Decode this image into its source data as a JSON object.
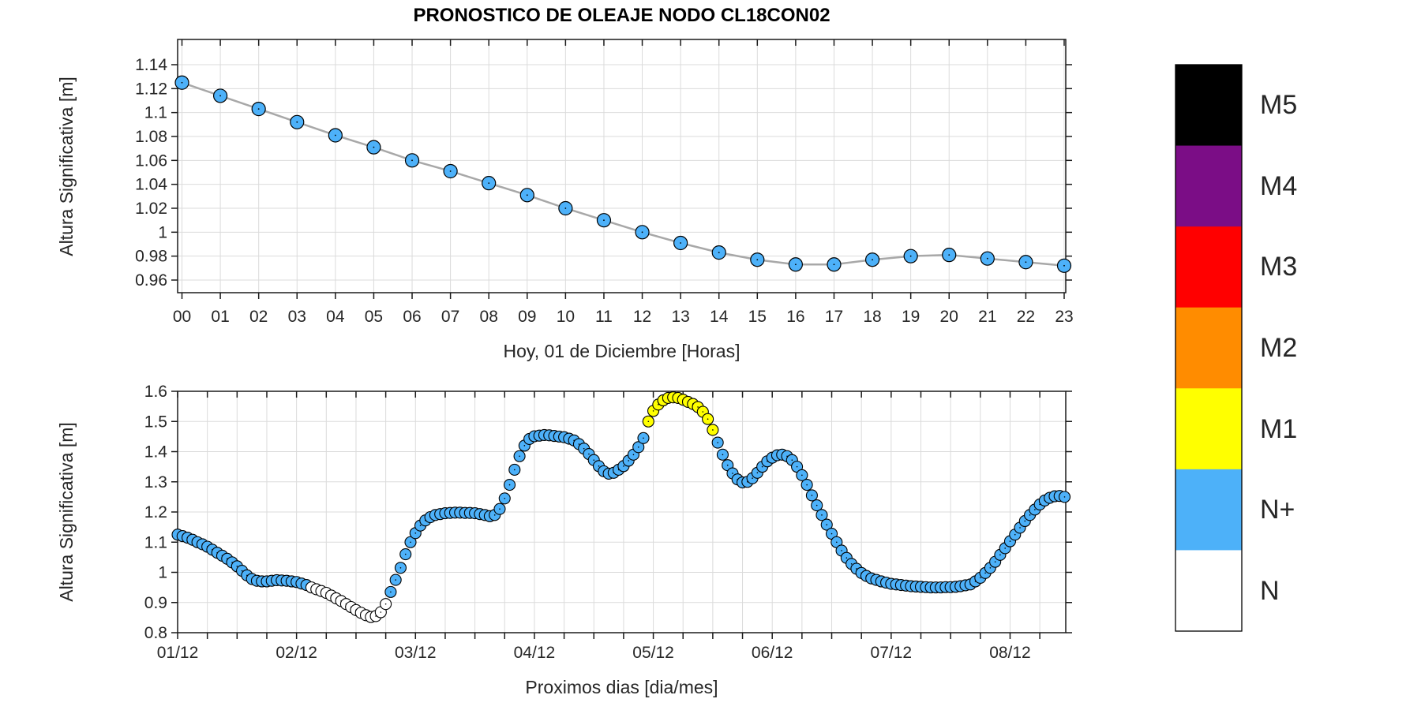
{
  "title": "PRONOSTICO DE OLEAJE NODO CL18CON02",
  "colors": {
    "background": "#ffffff",
    "axis": "#1a1a1a",
    "grid": "#dbdbdb",
    "text": "#262626",
    "series_line": "#a8a8a8",
    "marker_outline": "#000000",
    "marker_blue": "#4db1f9",
    "marker_yellow": "#ffff00",
    "marker_white": "#ffffff"
  },
  "legend": {
    "position": "right-colorbar",
    "items": [
      {
        "label": "M5",
        "color": "#000000"
      },
      {
        "label": "M4",
        "color": "#7b0d86"
      },
      {
        "label": "M3",
        "color": "#ff0000"
      },
      {
        "label": "M2",
        "color": "#ff8c00"
      },
      {
        "label": "M1",
        "color": "#ffff00"
      },
      {
        "label": "N+",
        "color": "#4db1f9"
      },
      {
        "label": "N",
        "color": "#ffffff"
      }
    ]
  },
  "chart_data": [
    {
      "type": "line",
      "id": "hourly-today",
      "title": "PRONOSTICO DE OLEAJE NODO CL18CON02",
      "xlabel": "Hoy, 01 de  Diciembre  [Horas]",
      "ylabel": "Altura Significativa [m]",
      "x_ticklabels": [
        "00",
        "01",
        "02",
        "03",
        "04",
        "05",
        "06",
        "07",
        "08",
        "09",
        "10",
        "11",
        "12",
        "13",
        "14",
        "15",
        "16",
        "17",
        "18",
        "19",
        "20",
        "21",
        "22",
        "23"
      ],
      "values": [
        1.125,
        1.114,
        1.103,
        1.092,
        1.081,
        1.071,
        1.06,
        1.051,
        1.041,
        1.031,
        1.02,
        1.01,
        1.0,
        0.991,
        0.983,
        0.977,
        0.973,
        0.973,
        0.977,
        0.98,
        0.981,
        0.978,
        0.975,
        0.972
      ],
      "yticks": [
        {
          "v": 0.96,
          "label": "0.96"
        },
        {
          "v": 0.98,
          "label": "0.98"
        },
        {
          "v": 1.0,
          "label": "1"
        },
        {
          "v": 1.02,
          "label": "1.02"
        },
        {
          "v": 1.04,
          "label": "1.04"
        },
        {
          "v": 1.06,
          "label": "1.06"
        },
        {
          "v": 1.08,
          "label": "1.08"
        },
        {
          "v": 1.1,
          "label": "1.1"
        },
        {
          "v": 1.12,
          "label": "1.12"
        },
        {
          "v": 1.14,
          "label": "1.14"
        }
      ],
      "ylim": [
        0.949,
        1.161
      ],
      "grid": true,
      "legend_category": "N+"
    },
    {
      "type": "line",
      "id": "next-days",
      "xlabel": "Proximos dias [dia/mes]",
      "ylabel": "Altura Significativa [m]",
      "sampling": "hourly",
      "start": "01/12 00:00",
      "day_ticklabels": [
        "01/12",
        "02/12",
        "03/12",
        "04/12",
        "05/12",
        "06/12",
        "07/12",
        "08/12"
      ],
      "values": [
        1.125,
        1.12,
        1.115,
        1.108,
        1.1,
        1.093,
        1.085,
        1.075,
        1.065,
        1.055,
        1.045,
        1.033,
        1.02,
        1.005,
        0.99,
        0.978,
        0.972,
        0.97,
        0.97,
        0.972,
        0.974,
        0.973,
        0.972,
        0.97,
        0.968,
        0.963,
        0.958,
        0.95,
        0.944,
        0.938,
        0.932,
        0.923,
        0.914,
        0.905,
        0.895,
        0.885,
        0.875,
        0.866,
        0.858,
        0.852,
        0.855,
        0.868,
        0.895,
        0.935,
        0.975,
        1.015,
        1.06,
        1.1,
        1.13,
        1.155,
        1.172,
        1.183,
        1.19,
        1.193,
        1.196,
        1.197,
        1.198,
        1.198,
        1.197,
        1.197,
        1.196,
        1.193,
        1.19,
        1.186,
        1.19,
        1.21,
        1.245,
        1.29,
        1.34,
        1.385,
        1.42,
        1.442,
        1.451,
        1.453,
        1.455,
        1.454,
        1.452,
        1.45,
        1.448,
        1.443,
        1.437,
        1.425,
        1.41,
        1.392,
        1.372,
        1.352,
        1.335,
        1.327,
        1.33,
        1.34,
        1.352,
        1.37,
        1.39,
        1.415,
        1.445,
        1.5,
        1.535,
        1.556,
        1.57,
        1.578,
        1.58,
        1.578,
        1.572,
        1.565,
        1.558,
        1.548,
        1.532,
        1.508,
        1.472,
        1.43,
        1.39,
        1.355,
        1.328,
        1.308,
        1.298,
        1.3,
        1.312,
        1.33,
        1.35,
        1.368,
        1.38,
        1.388,
        1.39,
        1.385,
        1.372,
        1.35,
        1.322,
        1.29,
        1.255,
        1.222,
        1.19,
        1.158,
        1.128,
        1.1,
        1.072,
        1.048,
        1.028,
        1.012,
        0.998,
        0.988,
        0.98,
        0.975,
        0.97,
        0.966,
        0.962,
        0.96,
        0.958,
        0.956,
        0.954,
        0.953,
        0.952,
        0.951,
        0.95,
        0.95,
        0.95,
        0.951,
        0.951,
        0.952,
        0.954,
        0.957,
        0.96,
        0.97,
        0.982,
        0.998,
        1.015,
        1.035,
        1.058,
        1.08,
        1.103,
        1.125,
        1.148,
        1.17,
        1.19,
        1.208,
        1.225,
        1.238,
        1.247,
        1.252,
        1.253,
        1.25
      ],
      "default_category": "N+",
      "category_ranges": [
        {
          "category": "N",
          "from_hour": 27,
          "to_hour": 42
        },
        {
          "category": "M1",
          "from_hour": 95,
          "to_hour": 108
        }
      ],
      "yticks": [
        {
          "v": 0.8,
          "label": "0.8"
        },
        {
          "v": 0.9,
          "label": "0.9"
        },
        {
          "v": 1.0,
          "label": "1"
        },
        {
          "v": 1.1,
          "label": "1.1"
        },
        {
          "v": 1.2,
          "label": "1.2"
        },
        {
          "v": 1.3,
          "label": "1.3"
        },
        {
          "v": 1.4,
          "label": "1.4"
        },
        {
          "v": 1.5,
          "label": "1.5"
        },
        {
          "v": 1.6,
          "label": "1.6"
        }
      ],
      "ylim": [
        0.8,
        1.6
      ],
      "xlim_days": [
        0,
        7.458
      ],
      "grid": true
    }
  ]
}
